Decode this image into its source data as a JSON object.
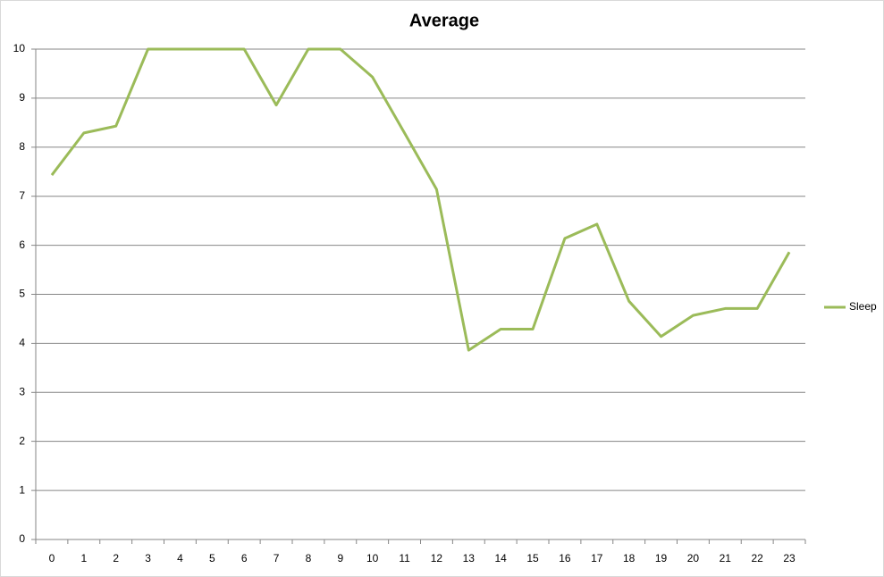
{
  "chart_data": {
    "type": "line",
    "title": "Average",
    "categories": [
      "0",
      "1",
      "2",
      "3",
      "4",
      "5",
      "6",
      "7",
      "8",
      "9",
      "10",
      "11",
      "12",
      "13",
      "14",
      "15",
      "16",
      "17",
      "18",
      "19",
      "20",
      "21",
      "22",
      "23"
    ],
    "series": [
      {
        "name": "Sleep",
        "color": "#9bbb59",
        "values": [
          7.43,
          8.29,
          8.43,
          10,
          10,
          10,
          10,
          8.86,
          10,
          10,
          9.43,
          8.29,
          7.14,
          3.86,
          4.29,
          4.29,
          6.14,
          6.43,
          4.86,
          4.14,
          4.57,
          4.71,
          4.71,
          5.86
        ]
      }
    ],
    "ylim": [
      0,
      10
    ],
    "yticks": [
      0,
      1,
      2,
      3,
      4,
      5,
      6,
      7,
      8,
      9,
      10
    ],
    "grid": true,
    "legend": "right"
  }
}
